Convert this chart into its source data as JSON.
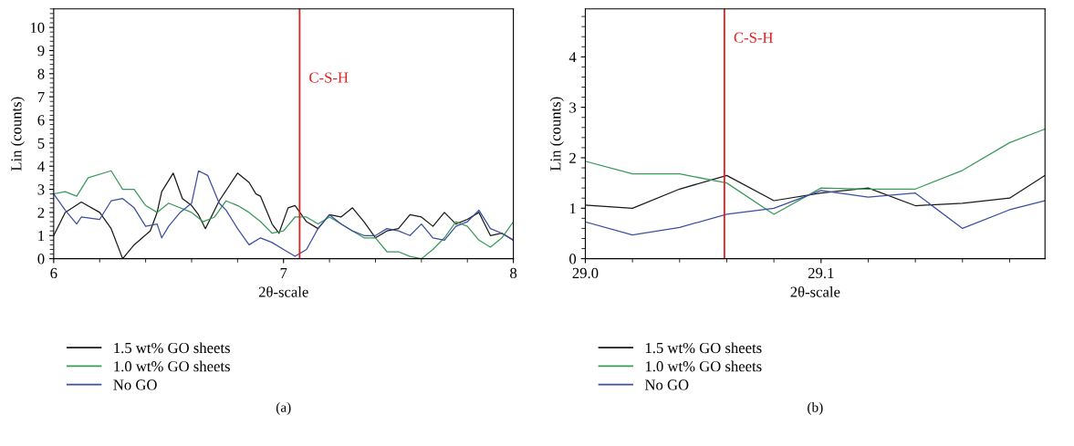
{
  "chart_data": [
    {
      "type": "line",
      "xlabel": "2θ-scale",
      "ylabel": "Lin (counts)",
      "xlim": [
        6,
        8
      ],
      "ylim": [
        0,
        10.8
      ],
      "xticks": [
        6,
        7,
        8
      ],
      "yticks": [
        0,
        1,
        2,
        3,
        4,
        5,
        6,
        7,
        8,
        9,
        10
      ],
      "grid": false,
      "legend": "bottom",
      "annotations": [
        "(a)"
      ],
      "ref_lines": [
        {
          "axis": "x",
          "value": 7.07,
          "label": "C-S-H",
          "color": "#e02020"
        }
      ],
      "series": [
        {
          "name": "1.5 wt% GO sheets",
          "color": "#1a1a1a",
          "x": [
            6.0,
            6.05,
            6.12,
            6.2,
            6.25,
            6.3,
            6.35,
            6.42,
            6.45,
            6.47,
            6.52,
            6.56,
            6.6,
            6.63,
            6.66,
            6.72,
            6.8,
            6.85,
            6.88,
            6.9,
            6.95,
            6.98,
            7.02,
            7.05,
            7.1,
            7.15,
            7.2,
            7.25,
            7.3,
            7.35,
            7.4,
            7.45,
            7.5,
            7.55,
            7.6,
            7.65,
            7.7,
            7.75,
            7.8,
            7.85,
            7.9,
            7.95,
            8.0
          ],
          "values": [
            1.0,
            2.0,
            2.45,
            2.0,
            1.3,
            0,
            0.6,
            1.2,
            2.0,
            2.9,
            3.7,
            2.6,
            2.3,
            1.9,
            1.3,
            2.5,
            3.7,
            3.3,
            2.8,
            2.7,
            1.5,
            1.1,
            2.2,
            2.3,
            1.6,
            1.3,
            1.9,
            1.8,
            2.2,
            1.6,
            0.9,
            1.2,
            1.3,
            1.9,
            1.8,
            1.4,
            2.0,
            1.5,
            1.7,
            2.0,
            1.0,
            1.1,
            0.8
          ]
        },
        {
          "name": "1.0 wt% GO sheets",
          "color": "#3a9a5a",
          "x": [
            6.0,
            6.05,
            6.1,
            6.15,
            6.25,
            6.3,
            6.35,
            6.4,
            6.45,
            6.5,
            6.6,
            6.65,
            6.7,
            6.75,
            6.8,
            6.85,
            6.9,
            6.95,
            7.0,
            7.05,
            7.1,
            7.15,
            7.2,
            7.25,
            7.3,
            7.35,
            7.4,
            7.45,
            7.5,
            7.55,
            7.6,
            7.65,
            7.7,
            7.75,
            7.8,
            7.85,
            7.9,
            7.95,
            8.0
          ],
          "values": [
            2.8,
            2.9,
            2.7,
            3.5,
            3.8,
            3.0,
            3.0,
            2.3,
            2.0,
            2.4,
            2.0,
            1.6,
            1.8,
            2.5,
            2.3,
            2.0,
            1.6,
            1.1,
            1.2,
            1.8,
            1.8,
            1.5,
            1.8,
            1.5,
            1.2,
            0.9,
            0.9,
            0.3,
            0.3,
            0.1,
            0,
            0.4,
            0.9,
            1.6,
            1.4,
            0.8,
            0.5,
            0.9,
            1.6
          ]
        },
        {
          "name": "No GO",
          "color": "#3b4fa0",
          "x": [
            6.0,
            6.05,
            6.1,
            6.12,
            6.2,
            6.25,
            6.3,
            6.35,
            6.4,
            6.45,
            6.47,
            6.5,
            6.55,
            6.6,
            6.63,
            6.67,
            6.72,
            6.75,
            6.8,
            6.85,
            6.9,
            6.95,
            7.0,
            7.05,
            7.1,
            7.15,
            7.2,
            7.25,
            7.3,
            7.35,
            7.4,
            7.45,
            7.5,
            7.55,
            7.6,
            7.65,
            7.7,
            7.75,
            7.8,
            7.85,
            7.9,
            7.95,
            8.0
          ],
          "values": [
            2.8,
            2.1,
            1.5,
            1.8,
            1.7,
            2.5,
            2.6,
            2.2,
            1.4,
            1.5,
            0.9,
            1.4,
            2.0,
            2.4,
            3.8,
            3.6,
            2.4,
            2.1,
            1.3,
            0.6,
            0.9,
            0.7,
            0.4,
            0.1,
            0.4,
            1.3,
            1.9,
            1.5,
            1.2,
            1.0,
            1.0,
            1.3,
            1.2,
            1.0,
            1.5,
            0.9,
            0.8,
            1.4,
            1.6,
            2.1,
            1.3,
            1.1,
            0.8
          ]
        }
      ]
    },
    {
      "type": "line",
      "xlabel": "2θ-scale",
      "ylabel": "Lin (counts)",
      "xlim": [
        29.0,
        29.195
      ],
      "ylim": [
        0,
        4.95
      ],
      "xticks": [
        {
          "value": 29.0,
          "label": "29.0"
        },
        29.1
      ],
      "yticks": [
        0,
        1,
        2,
        3,
        4
      ],
      "grid": false,
      "legend": "bottom",
      "annotations": [
        "(b)"
      ],
      "ref_lines": [
        {
          "axis": "x",
          "value": 29.059,
          "label": "C-S-H",
          "color": "#e02020"
        }
      ],
      "series": [
        {
          "name": "1.5 wt% GO sheets",
          "color": "#1a1a1a",
          "x": [
            29.0,
            29.02,
            29.04,
            29.06,
            29.08,
            29.1,
            29.12,
            29.14,
            29.16,
            29.18,
            29.195
          ],
          "values": [
            1.06,
            1.0,
            1.38,
            1.65,
            1.15,
            1.3,
            1.4,
            1.05,
            1.1,
            1.2,
            1.65
          ]
        },
        {
          "name": "1.0 wt% GO sheets",
          "color": "#3a9a5a",
          "x": [
            29.0,
            29.02,
            29.04,
            29.06,
            29.08,
            29.1,
            29.12,
            29.14,
            29.16,
            29.18,
            29.195
          ],
          "values": [
            1.93,
            1.68,
            1.68,
            1.5,
            0.88,
            1.4,
            1.38,
            1.38,
            1.75,
            2.3,
            2.57
          ]
        },
        {
          "name": "No GO",
          "color": "#3b4fa0",
          "x": [
            29.0,
            29.02,
            29.04,
            29.06,
            29.08,
            29.1,
            29.12,
            29.14,
            29.16,
            29.18,
            29.195
          ],
          "values": [
            0.73,
            0.47,
            0.62,
            0.88,
            1.0,
            1.35,
            1.22,
            1.3,
            0.6,
            0.97,
            1.15
          ]
        }
      ]
    }
  ]
}
